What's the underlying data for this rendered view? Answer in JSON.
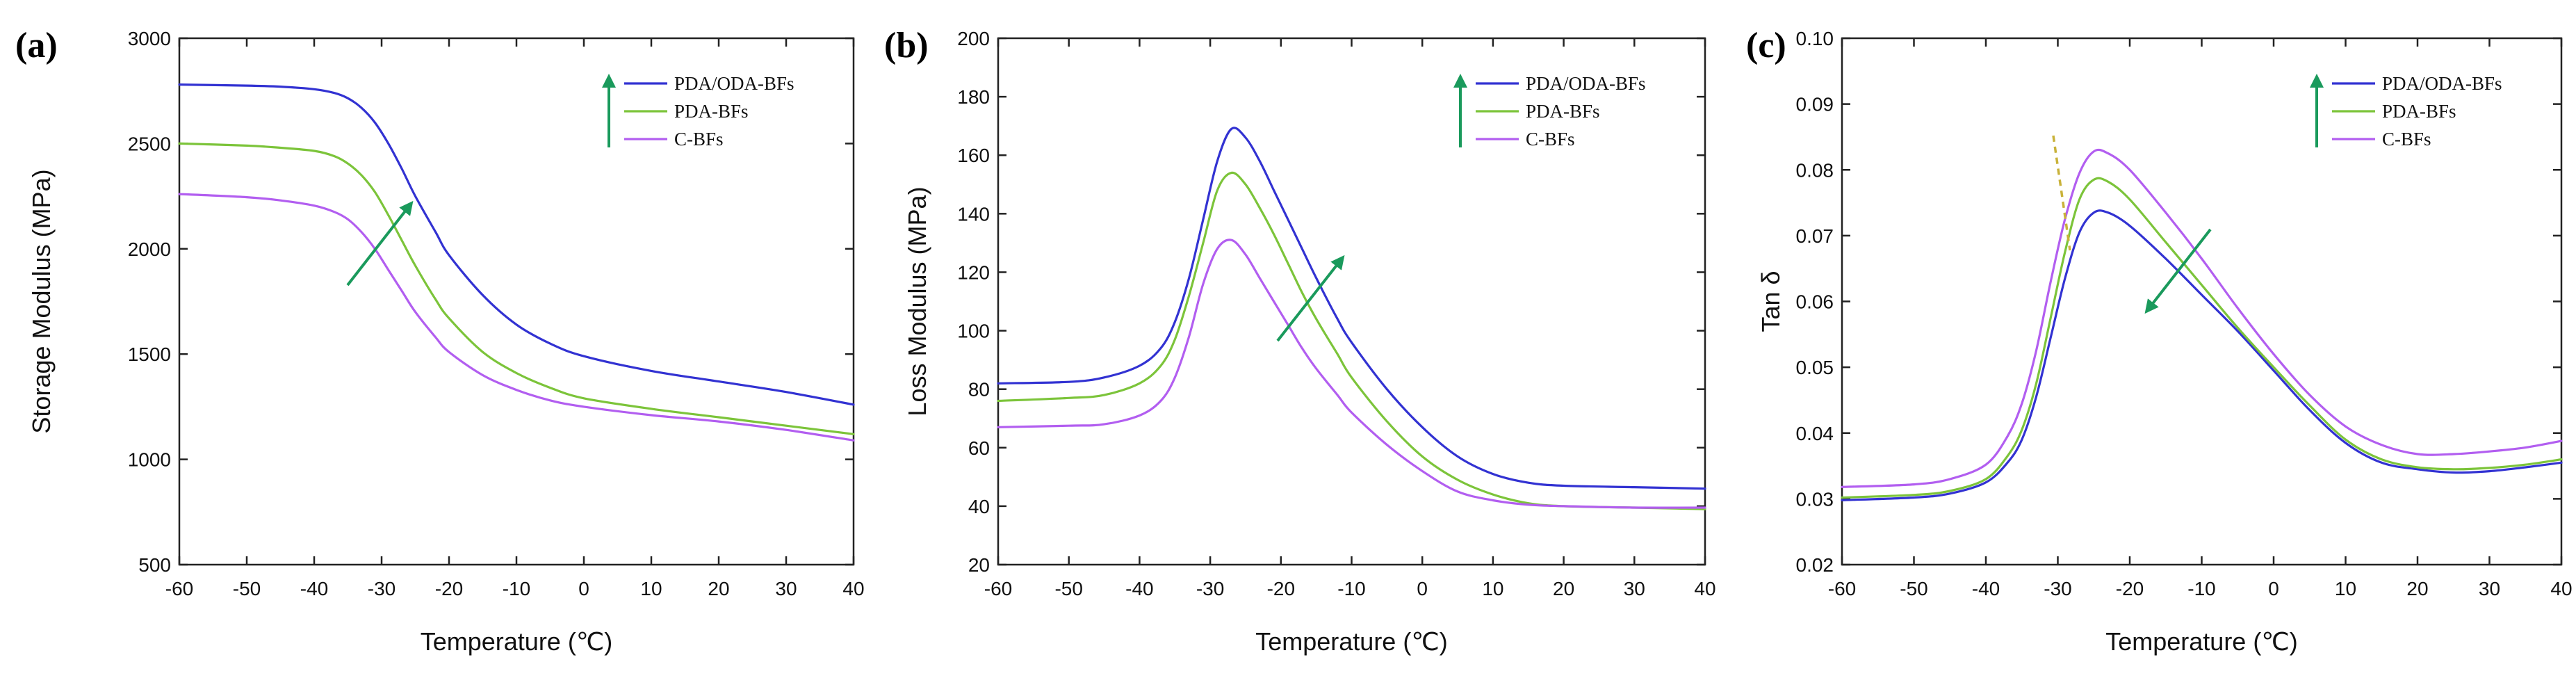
{
  "colors": {
    "PDA/ODA-BFs": "#3232d2",
    "PDA-BFs": "#7cc43a",
    "C-BFs": "#b25ef0",
    "arrow": "#1a9a5c",
    "dashed": "#c9b23a"
  },
  "chart_data": [
    {
      "type": "line",
      "panel_label": "(a)",
      "xlabel": "Temperature (℃)",
      "ylabel": "Storage Modulus (MPa)",
      "xlim": [
        -60,
        40
      ],
      "ylim": [
        500,
        3000
      ],
      "xticks": [
        -60,
        -50,
        -40,
        -30,
        -20,
        -10,
        0,
        10,
        20,
        30,
        40
      ],
      "yticks": [
        500,
        1000,
        1500,
        2000,
        2500,
        3000
      ],
      "legend": [
        "PDA/ODA-BFs",
        "PDA-BFs",
        "C-BFs"
      ],
      "legend_position": "top-right",
      "arrow_direction": "up",
      "series": [
        {
          "name": "PDA/ODA-BFs",
          "x": [
            -60,
            -50,
            -45,
            -40,
            -37,
            -35,
            -33,
            -31,
            -29,
            -27,
            -25,
            -22,
            -20,
            -15,
            -10,
            -5,
            0,
            10,
            20,
            30,
            40
          ],
          "y": [
            2780,
            2775,
            2770,
            2758,
            2740,
            2715,
            2670,
            2600,
            2500,
            2380,
            2250,
            2080,
            1970,
            1780,
            1640,
            1550,
            1490,
            1420,
            1370,
            1320,
            1260
          ]
        },
        {
          "name": "PDA-BFs",
          "x": [
            -60,
            -50,
            -45,
            -40,
            -37,
            -35,
            -33,
            -31,
            -29,
            -27,
            -25,
            -22,
            -20,
            -15,
            -10,
            -5,
            0,
            10,
            20,
            30,
            40
          ],
          "y": [
            2500,
            2490,
            2480,
            2465,
            2440,
            2405,
            2350,
            2270,
            2160,
            2040,
            1920,
            1760,
            1670,
            1510,
            1410,
            1340,
            1290,
            1240,
            1200,
            1160,
            1120
          ]
        },
        {
          "name": "C-BFs",
          "x": [
            -60,
            -50,
            -45,
            -40,
            -37,
            -35,
            -33,
            -31,
            -29,
            -27,
            -25,
            -22,
            -20,
            -15,
            -10,
            -5,
            0,
            10,
            20,
            30,
            40
          ],
          "y": [
            2260,
            2245,
            2230,
            2205,
            2175,
            2140,
            2080,
            2000,
            1900,
            1800,
            1700,
            1580,
            1510,
            1400,
            1330,
            1280,
            1250,
            1210,
            1180,
            1140,
            1090
          ]
        }
      ]
    },
    {
      "type": "line",
      "panel_label": "(b)",
      "xlabel": "Temperature (℃)",
      "ylabel": "Loss Modulus (MPa)",
      "xlim": [
        -60,
        40
      ],
      "ylim": [
        20,
        200
      ],
      "xticks": [
        -60,
        -50,
        -40,
        -30,
        -20,
        -10,
        0,
        10,
        20,
        30,
        40
      ],
      "yticks": [
        20,
        40,
        60,
        80,
        100,
        120,
        140,
        160,
        180,
        200
      ],
      "legend": [
        "PDA/ODA-BFs",
        "PDA-BFs",
        "C-BFs"
      ],
      "legend_position": "top-right",
      "arrow_direction": "up",
      "series": [
        {
          "name": "PDA/ODA-BFs",
          "x": [
            -60,
            -50,
            -45,
            -40,
            -37,
            -35,
            -33,
            -31,
            -29,
            -27,
            -25,
            -23,
            -21,
            -19,
            -17,
            -15,
            -12,
            -10,
            -5,
            0,
            5,
            10,
            15,
            20,
            30,
            40
          ],
          "y": [
            82,
            82.5,
            84,
            88,
            94,
            103,
            118,
            138,
            158,
            169,
            166,
            158,
            148,
            138,
            128,
            118,
            104,
            96,
            80,
            67,
            57,
            51,
            48,
            47,
            46.5,
            46
          ]
        },
        {
          "name": "PDA-BFs",
          "x": [
            -60,
            -50,
            -45,
            -40,
            -37,
            -35,
            -33,
            -31,
            -29,
            -27,
            -25,
            -23,
            -21,
            -19,
            -17,
            -15,
            -12,
            -10,
            -5,
            0,
            5,
            10,
            15,
            20,
            30,
            40
          ],
          "y": [
            76,
            77,
            78,
            82,
            88,
            97,
            112,
            130,
            148,
            154,
            150,
            142,
            133,
            123,
            113,
            104,
            92,
            84,
            69,
            57,
            49,
            44,
            41,
            40,
            39.5,
            39
          ]
        },
        {
          "name": "C-BFs",
          "x": [
            -60,
            -50,
            -45,
            -40,
            -37,
            -35,
            -33,
            -31,
            -29,
            -27,
            -25,
            -23,
            -21,
            -19,
            -17,
            -15,
            -12,
            -10,
            -5,
            0,
            5,
            10,
            15,
            20,
            30,
            40
          ],
          "y": [
            67,
            67.5,
            68,
            71,
            76,
            84,
            98,
            116,
            128,
            131,
            126,
            118,
            110,
            102,
            94,
            87,
            78,
            72,
            61,
            52,
            45,
            42,
            40.5,
            40,
            39.5,
            39.5
          ]
        }
      ]
    },
    {
      "type": "line",
      "panel_label": "(c)",
      "xlabel": "Temperature (℃)",
      "ylabel": "Tan δ",
      "xlim": [
        -60,
        40
      ],
      "ylim": [
        0.02,
        0.1
      ],
      "xticks": [
        -60,
        -50,
        -40,
        -30,
        -20,
        -10,
        0,
        10,
        20,
        30,
        40
      ],
      "yticks": [
        0.02,
        0.03,
        0.04,
        0.05,
        0.06,
        0.07,
        0.08,
        0.09,
        0.1
      ],
      "ytick_labels": [
        "0.02",
        "0.03",
        "0.04",
        "0.05",
        "0.06",
        "0.07",
        "0.08",
        "0.09",
        "0.10"
      ],
      "legend": [
        "PDA/ODA-BFs",
        "PDA-BFs",
        "C-BFs"
      ],
      "legend_position": "top-right",
      "arrow_direction": "up",
      "series": [
        {
          "name": "PDA/ODA-BFs",
          "x": [
            -60,
            -50,
            -45,
            -40,
            -37,
            -35,
            -33,
            -31,
            -29,
            -27,
            -25,
            -23,
            -20,
            -15,
            -10,
            -5,
            0,
            5,
            10,
            15,
            20,
            25,
            30,
            35,
            40
          ],
          "y": [
            0.0298,
            0.0302,
            0.0308,
            0.0325,
            0.0355,
            0.039,
            0.0455,
            0.0545,
            0.0635,
            0.0705,
            0.0735,
            0.0735,
            0.0715,
            0.0665,
            0.061,
            0.0555,
            0.0495,
            0.0435,
            0.0385,
            0.0355,
            0.0345,
            0.034,
            0.0342,
            0.0348,
            0.0355
          ]
        },
        {
          "name": "PDA-BFs",
          "x": [
            -60,
            -50,
            -45,
            -40,
            -37,
            -35,
            -33,
            -31,
            -29,
            -27,
            -25,
            -23,
            -20,
            -15,
            -10,
            -5,
            0,
            5,
            10,
            15,
            20,
            25,
            30,
            35,
            40
          ],
          "y": [
            0.0302,
            0.0306,
            0.0312,
            0.033,
            0.0365,
            0.0405,
            0.0475,
            0.0575,
            0.0675,
            0.0755,
            0.0785,
            0.0782,
            0.0755,
            0.069,
            0.0625,
            0.056,
            0.05,
            0.0442,
            0.039,
            0.036,
            0.0348,
            0.0345,
            0.0347,
            0.0352,
            0.036
          ]
        },
        {
          "name": "C-BFs",
          "x": [
            -60,
            -50,
            -45,
            -40,
            -37,
            -35,
            -33,
            -31,
            -29,
            -27,
            -25,
            -23,
            -20,
            -15,
            -10,
            -5,
            0,
            5,
            10,
            15,
            20,
            25,
            30,
            35,
            40
          ],
          "y": [
            0.0318,
            0.0322,
            0.033,
            0.0352,
            0.0395,
            0.0445,
            0.0525,
            0.063,
            0.0725,
            0.0795,
            0.0828,
            0.0825,
            0.08,
            0.0735,
            0.0665,
            0.059,
            0.052,
            0.0458,
            0.041,
            0.0382,
            0.0368,
            0.0368,
            0.0372,
            0.0378,
            0.0388
          ]
        }
      ]
    }
  ]
}
